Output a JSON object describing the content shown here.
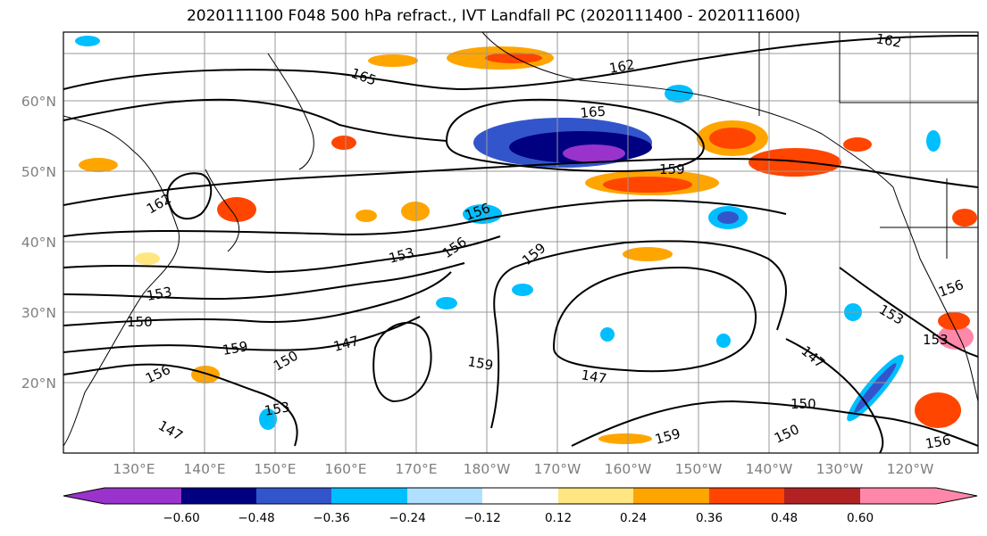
{
  "title": "2020111100 F048 500 hPa refract., IVT Landfall PC (2020111400 - 2020111600)",
  "map": {
    "lat_labels": [
      "60°N",
      "50°N",
      "40°N",
      "30°N",
      "20°N"
    ],
    "lon_labels": [
      "130°E",
      "140°E",
      "150°E",
      "160°E",
      "170°E",
      "180°W",
      "170°W",
      "160°W",
      "150°W",
      "140°W",
      "130°W",
      "120°W"
    ],
    "contour_labels": [
      "165",
      "162",
      "165",
      "159",
      "162",
      "162",
      "156",
      "156",
      "159",
      "153",
      "153",
      "150",
      "159",
      "156",
      "150",
      "147",
      "159",
      "147",
      "147",
      "153",
      "147",
      "150",
      "150",
      "153",
      "156",
      "153",
      "156",
      "159"
    ],
    "colors": {
      "frame": "#000000",
      "grid": "#999999",
      "contour": "#000000"
    }
  },
  "colorbar": {
    "tick_labels": [
      "−0.60",
      "−0.48",
      "−0.36",
      "−0.24",
      "−0.12",
      "0.12",
      "0.24",
      "0.36",
      "0.48",
      "0.60"
    ],
    "colors": [
      "#9933cc",
      "#000080",
      "#3355cc",
      "#00bfff",
      "#b0e0ff",
      "#ffffff",
      "#ffe680",
      "#ffa500",
      "#ff4500",
      "#b22222",
      "#ff88aa"
    ]
  }
}
